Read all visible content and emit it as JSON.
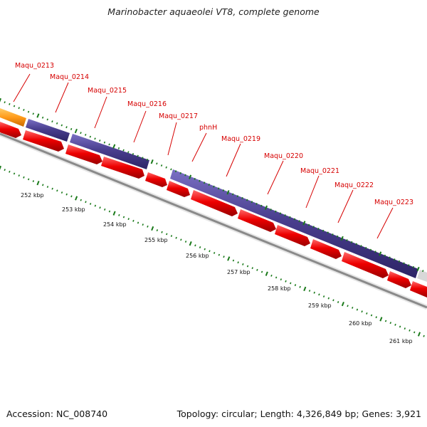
{
  "title": "Marinobacter aquaeolei VT8, complete genome",
  "footer": {
    "accession": "Accession: NC_008740",
    "summary": "Topology: circular; Length: 4,326,849 bp; Genes: 3,921"
  },
  "colors": {
    "gene_label": "#d60000",
    "cds_forward": "#4a3f8f",
    "cds_reverse": "#ee0000",
    "cds_highlight": "#ff9a1a",
    "tick": "#1a7a1a",
    "backbone": "#8a8a8a"
  },
  "gene_labels": [
    "Maqu_0213",
    "Maqu_0214",
    "Maqu_0215",
    "Maqu_0216",
    "Maqu_0217",
    "phnH",
    "Maqu_0219",
    "Maqu_0220",
    "Maqu_0221",
    "Maqu_0222",
    "Maqu_0223"
  ],
  "kbp_labels": [
    "252 kbp",
    "253 kbp",
    "254 kbp",
    "255 kbp",
    "256 kbp",
    "257 kbp",
    "258 kbp",
    "259 kbp",
    "260 kbp",
    "261 kbp"
  ]
}
